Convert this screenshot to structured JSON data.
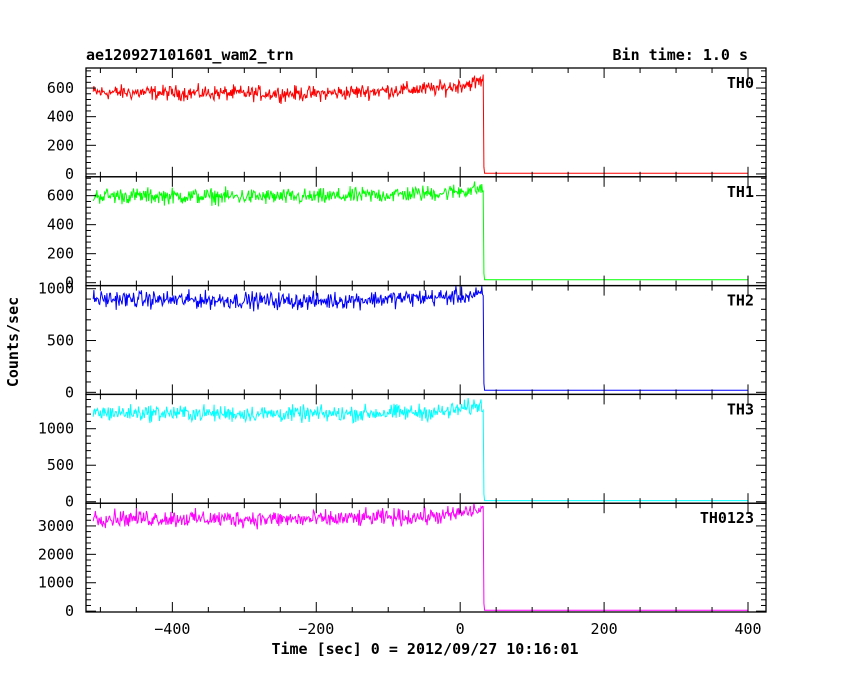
{
  "header": {
    "title": "ae120927101601_wam2_trn",
    "bin_time": "Bin time: 1.0 s"
  },
  "chart_data": {
    "type": "line",
    "xlabel": "Time [sec] 0 = 2012/09/27 10:16:01",
    "ylabel": "Counts/sec",
    "xlim": [
      -520,
      425
    ],
    "x_ticks": [
      -400,
      -200,
      0,
      200,
      400
    ],
    "x_tick_labels": [
      "−400",
      "−200",
      "0",
      "200",
      "400"
    ],
    "x_range_data": [
      -510,
      400
    ],
    "drop_time": 32,
    "noise_amplitude": 0.075,
    "panels": [
      {
        "name": "TH0",
        "color": "#ff0000",
        "ylim": [
          -20,
          740
        ],
        "y_ticks": [
          0,
          200,
          400,
          600
        ],
        "y_tick_labels": [
          "0",
          "200",
          "400",
          "600"
        ],
        "level_start": 570,
        "level_mid": 560,
        "level_end": 600,
        "peak": 650,
        "after_level": 5
      },
      {
        "name": "TH1",
        "color": "#00ff00",
        "ylim": [
          -20,
          730
        ],
        "y_ticks": [
          0,
          200,
          400,
          600
        ],
        "y_tick_labels": [
          "0",
          "200",
          "400",
          "600"
        ],
        "level_start": 600,
        "level_mid": 590,
        "level_end": 620,
        "peak": 650,
        "after_level": 20
      },
      {
        "name": "TH2",
        "color": "#0000ff",
        "ylim": [
          -20,
          1030
        ],
        "y_ticks": [
          0,
          500,
          1000
        ],
        "y_tick_labels": [
          "0",
          "500",
          "1000"
        ],
        "level_start": 900,
        "level_mid": 880,
        "level_end": 920,
        "peak": 940,
        "after_level": 20
      },
      {
        "name": "TH3",
        "color": "#00ffff",
        "ylim": [
          -20,
          1470
        ],
        "y_ticks": [
          0,
          500,
          1000
        ],
        "y_tick_labels": [
          "0",
          "500",
          "1000"
        ],
        "level_start": 1220,
        "level_mid": 1200,
        "level_end": 1230,
        "peak": 1330,
        "after_level": 15
      },
      {
        "name": "TH0123",
        "color": "#ff00ff",
        "ylim": [
          -30,
          3800
        ],
        "y_ticks": [
          0,
          1000,
          2000,
          3000
        ],
        "y_tick_labels": [
          "0",
          "1000",
          "2000",
          "3000"
        ],
        "level_start": 3280,
        "level_mid": 3230,
        "level_end": 3350,
        "peak": 3600,
        "after_level": 30
      }
    ]
  }
}
